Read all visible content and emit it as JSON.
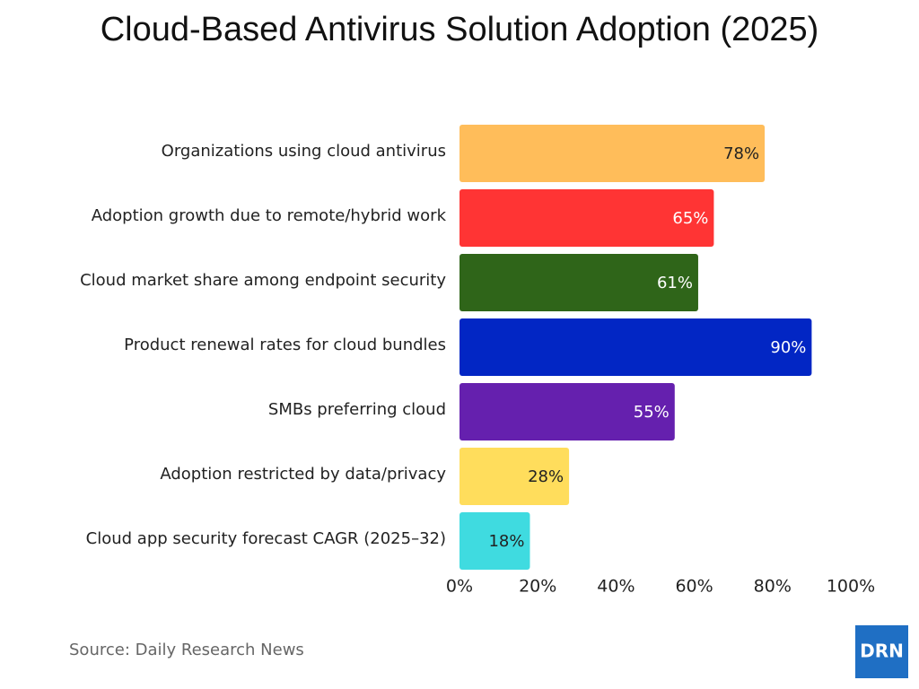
{
  "chart_data": {
    "type": "bar",
    "orientation": "horizontal",
    "title": "Cloud-Based Antivirus Solution Adoption (2025)",
    "categories": [
      "Organizations using cloud antivirus",
      "Adoption growth due to remote/hybrid work",
      "Cloud market share among endpoint security",
      "Product renewal rates for cloud bundles",
      "SMBs preferring cloud",
      "Adoption restricted by data/privacy",
      "Cloud app security forecast CAGR (2025–32)"
    ],
    "values": [
      78,
      65,
      61,
      90,
      55,
      28,
      18
    ],
    "value_labels": [
      "78%",
      "65%",
      "61%",
      "90%",
      "55%",
      "28%",
      "18%"
    ],
    "colors": [
      "#ffbd5a",
      "#ff3434",
      "#2f6519",
      "#0226c4",
      "#6520ae",
      "#ffdd5c",
      "#3fdbe0"
    ],
    "xlim": [
      0,
      100
    ],
    "xticks": [
      {
        "value": 0,
        "label": "0%"
      },
      {
        "value": 20,
        "label": "20%"
      },
      {
        "value": 40,
        "label": "40%"
      },
      {
        "value": 60,
        "label": "60%"
      },
      {
        "value": 80,
        "label": "80%"
      },
      {
        "value": 100,
        "label": "100%"
      }
    ],
    "grid": false,
    "source": "Source: Daily Research News",
    "logo": "DRN"
  }
}
